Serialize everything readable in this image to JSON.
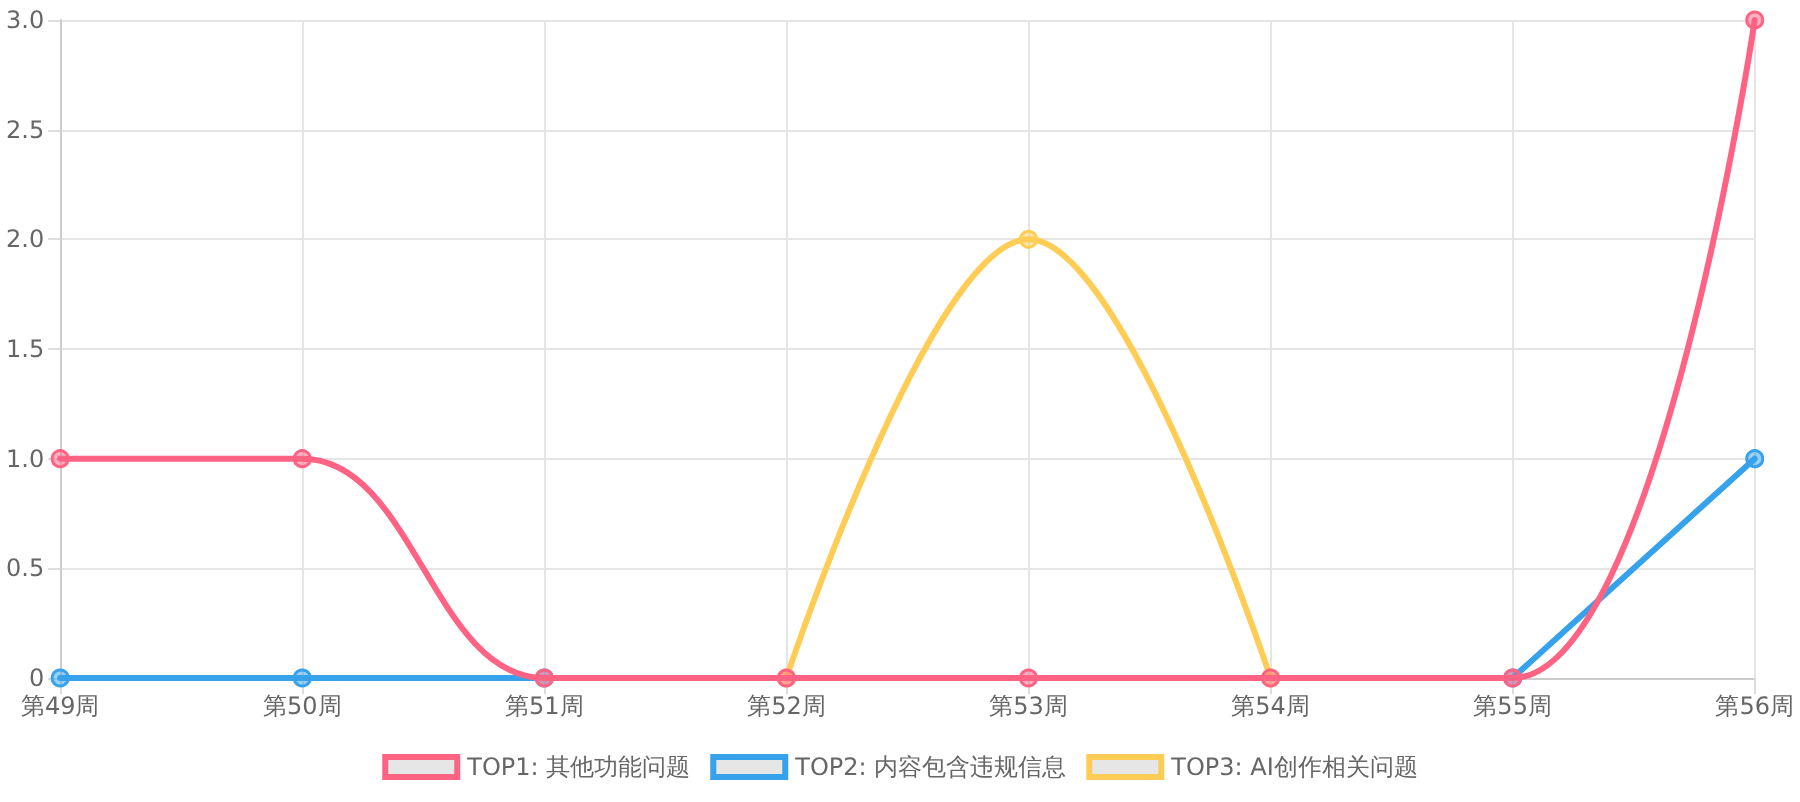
{
  "chart_data": {
    "type": "line",
    "categories": [
      "第49周",
      "第50周",
      "第51周",
      "第52周",
      "第53周",
      "第54周",
      "第55周",
      "第56周"
    ],
    "series": [
      {
        "name": "TOP1: 其他功能问题",
        "color": "#ff6384",
        "values": [
          1,
          1,
          0,
          0,
          0,
          0,
          0,
          3
        ]
      },
      {
        "name": "TOP2: 内容包含违规信息",
        "color": "#36a2eb",
        "values": [
          0,
          0,
          0,
          null,
          null,
          null,
          0,
          1
        ]
      },
      {
        "name": "TOP3: AI创作相关问题",
        "color": "#ffcd56",
        "values": [
          null,
          null,
          null,
          0,
          2,
          0,
          null,
          null
        ]
      }
    ],
    "ylim": [
      0,
      3
    ],
    "yticks": [
      0,
      {
        "value": 0.5,
        "label": "0.5"
      },
      {
        "value": 1,
        "label": "1.0"
      },
      {
        "value": 1.5,
        "label": "1.5"
      },
      {
        "value": 2,
        "label": "2.0"
      },
      {
        "value": 2.5,
        "label": "2.5"
      },
      {
        "value": 3,
        "label": "3.0"
      }
    ],
    "grid": true,
    "legend": "bottom",
    "marker": "circle",
    "line_style": "solid"
  }
}
